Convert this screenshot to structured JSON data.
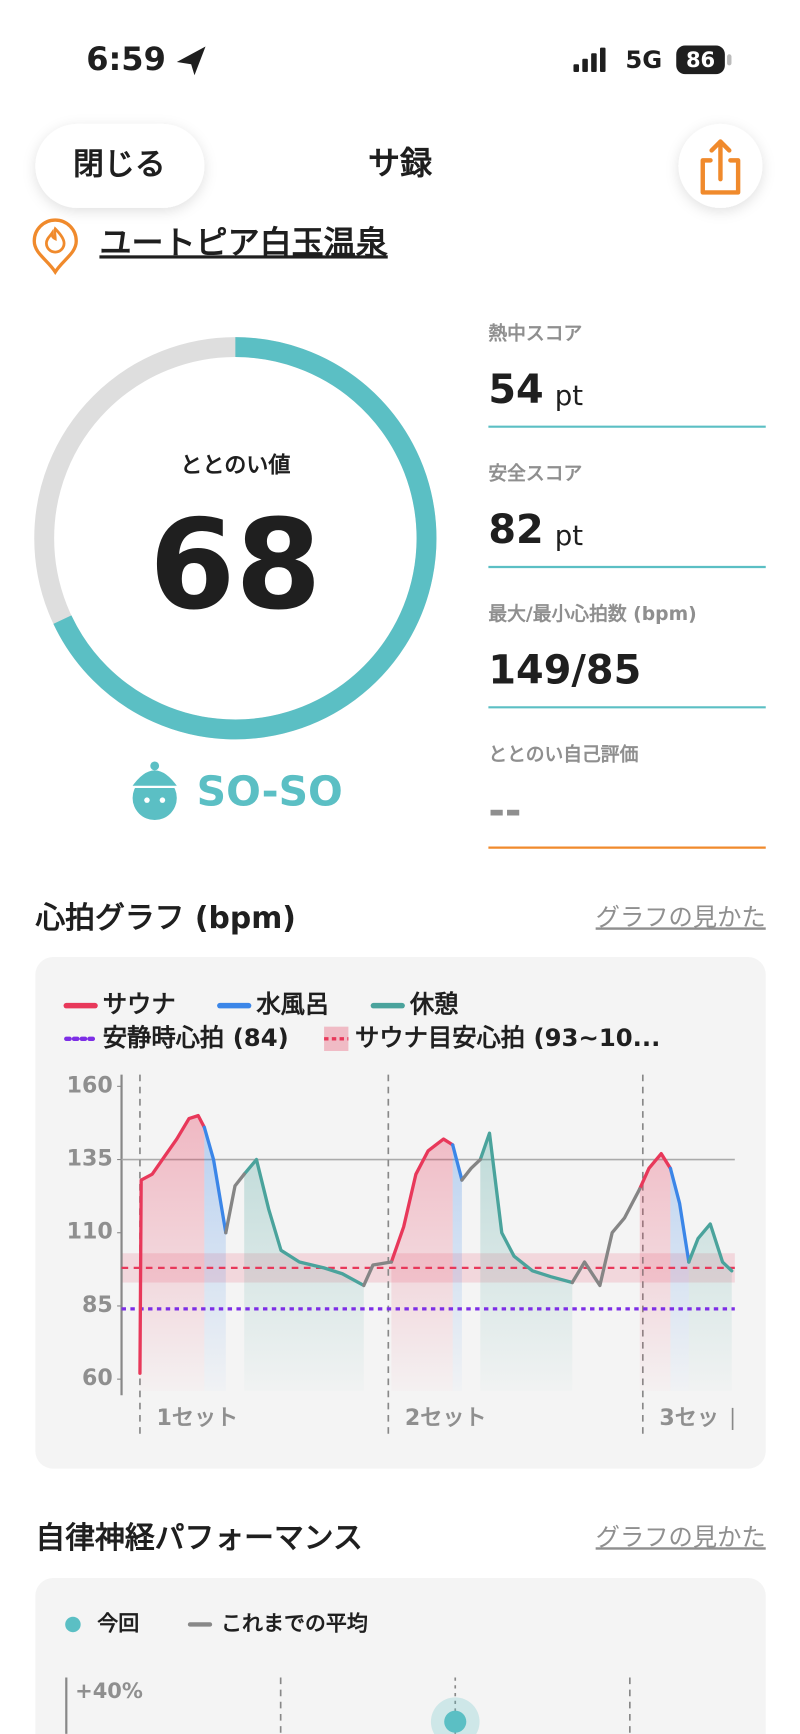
{
  "status_bar": {
    "time": "6:59",
    "network": "5G",
    "battery": "86"
  },
  "header": {
    "close": "閉じる",
    "title": "サ録"
  },
  "facility": "ユートピア白玉温泉",
  "gauge": {
    "label": "ととのい値",
    "value": 68,
    "max": 100,
    "rating": "SO-SO"
  },
  "scores": [
    {
      "label": "熱中スコア",
      "value": "54",
      "unit": "pt"
    },
    {
      "label": "安全スコア",
      "value": "82",
      "unit": "pt"
    },
    {
      "label": "最大/最小心拍数 (bpm)",
      "value": "149/85"
    },
    {
      "label": "ととのい自己評価",
      "value": "--"
    }
  ],
  "heart_section": {
    "title": "心拍グラフ (bpm)",
    "link": "グラフの見かた"
  },
  "chart_data": {
    "type": "line",
    "xlim": [
      0,
      100
    ],
    "ylim": [
      56,
      164
    ],
    "yticks": [
      60,
      85,
      110,
      135,
      160
    ],
    "max_line": 135,
    "x": [
      3,
      3.2,
      5,
      7,
      9,
      11,
      12.5,
      13.5,
      15,
      17,
      18.5,
      20,
      22,
      24,
      26,
      29,
      33,
      36,
      39.5,
      41,
      44,
      46,
      48,
      50,
      52.5,
      54,
      55.5,
      57,
      58.5,
      60,
      62,
      64,
      67,
      70,
      73.5,
      75.5,
      78,
      80,
      82,
      84.5,
      86,
      88,
      89.5,
      91,
      92.5,
      94,
      96,
      98,
      99.5
    ],
    "series": [
      {
        "name": "サウナ",
        "color": "#e8385a",
        "area": true,
        "values": [
          62,
          128,
          130,
          136,
          142,
          149,
          150,
          146,
          null,
          null,
          null,
          null,
          null,
          null,
          null,
          null,
          null,
          null,
          null,
          null,
          100,
          112,
          130,
          138,
          142,
          140,
          null,
          null,
          null,
          null,
          null,
          null,
          null,
          null,
          null,
          null,
          null,
          null,
          null,
          125,
          132,
          137,
          132,
          null,
          null,
          null,
          null,
          null,
          null
        ]
      },
      {
        "name": "水風呂",
        "color": "#3b86e8",
        "area": true,
        "values": [
          null,
          null,
          null,
          null,
          null,
          null,
          null,
          146,
          135,
          110,
          null,
          null,
          null,
          null,
          null,
          null,
          null,
          null,
          null,
          null,
          null,
          null,
          null,
          null,
          null,
          140,
          128,
          null,
          null,
          null,
          null,
          null,
          null,
          null,
          null,
          null,
          null,
          null,
          null,
          null,
          null,
          null,
          132,
          120,
          100,
          null,
          null,
          null,
          null
        ]
      },
      {
        "name": "休憩",
        "color": "#4aa39c",
        "area": true,
        "values": [
          null,
          null,
          null,
          null,
          null,
          null,
          null,
          null,
          null,
          null,
          null,
          130,
          135,
          118,
          104,
          100,
          98,
          96,
          92,
          null,
          null,
          null,
          null,
          null,
          null,
          null,
          null,
          null,
          135,
          144,
          110,
          102,
          97,
          95,
          93,
          null,
          null,
          null,
          null,
          null,
          null,
          null,
          null,
          null,
          100,
          108,
          113,
          100,
          97
        ]
      },
      {
        "color": "#858585",
        "area": false,
        "values": [
          null,
          null,
          null,
          null,
          null,
          null,
          null,
          null,
          null,
          110,
          126,
          130,
          null,
          null,
          null,
          null,
          null,
          null,
          92,
          99,
          100,
          null,
          null,
          null,
          null,
          null,
          128,
          132,
          135,
          null,
          null,
          null,
          null,
          null,
          93,
          100,
          92,
          110,
          115,
          125,
          null,
          null,
          null,
          null,
          null,
          null,
          null,
          null,
          null
        ]
      }
    ],
    "resting": {
      "label": "安静時心拍 (84)",
      "value": 84,
      "color": "#7d2ee6"
    },
    "target": {
      "label": "サウナ目安心拍 (93~10...",
      "range": [
        93,
        103
      ],
      "value": 98,
      "color": "#e8385a"
    },
    "set_markers": [
      {
        "value": 3,
        "label": "1セット"
      },
      {
        "value": 43.5,
        "label": "2セット"
      },
      {
        "value": 85,
        "label": "3セッ"
      }
    ]
  },
  "autonomic_section": {
    "title": "自律神経パフォーマンス",
    "link": "グラフの見かた",
    "legend": [
      "今回",
      "これまでの平均"
    ],
    "tick_label": "+40%"
  }
}
